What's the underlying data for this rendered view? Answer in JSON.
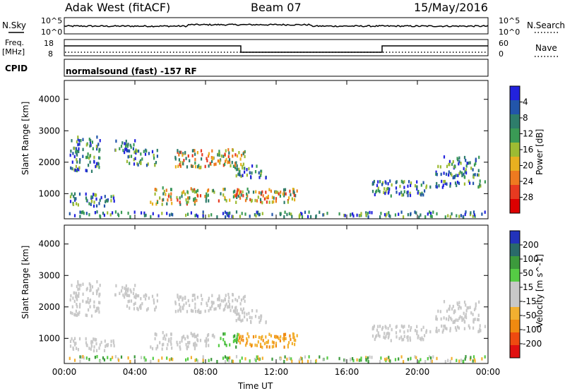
{
  "header": {
    "radar": "Adak West (fitACF)",
    "beam": "Beam 07",
    "date": "15/May/2016"
  },
  "panels": {
    "nsky": {
      "label": "N.Sky",
      "tick_top": "10^5",
      "tick_bottom": "10^0",
      "right_label": "N.Search",
      "right_tick_top": "10^5",
      "right_tick_bottom": "10^0"
    },
    "freq": {
      "label_line1": "Freq.",
      "label_line2": "[MHz]",
      "tick_top": "18",
      "tick_bottom": "8",
      "right_label": "Nave",
      "right_tick_top": "60",
      "right_tick_bottom": "0",
      "steps": [
        {
          "t": 0,
          "level": "high"
        },
        {
          "t": 10,
          "level": "low"
        },
        {
          "t": 18,
          "level": "high"
        },
        {
          "t": 24,
          "level": "high"
        }
      ]
    },
    "cpid": {
      "label": "CPID",
      "text": "normalsound (fast) -157 RF"
    }
  },
  "chart_data": [
    {
      "type": "heatmap",
      "name": "power",
      "xlabel": "",
      "ylabel": "Slant Range [km]",
      "ylim": [
        200,
        4600
      ],
      "yticks": [
        "1000",
        "2000",
        "3000",
        "4000"
      ],
      "ytick_values": [
        1000,
        2000,
        3000,
        4000
      ],
      "colorbar": {
        "label": "Power [dB]",
        "ticks": [
          "4",
          "8",
          "12",
          "16",
          "20",
          "24",
          "28"
        ],
        "colors": [
          "#2222dd",
          "#2255aa",
          "#2e7d6b",
          "#3a9a55",
          "#9dbb33",
          "#e8b020",
          "#ee7a20",
          "#e83a20",
          "#dd0000"
        ]
      }
    },
    {
      "type": "heatmap",
      "name": "velocity",
      "xlabel": "Time UT",
      "ylabel": "Slant Range [km]",
      "ylim": [
        200,
        4600
      ],
      "yticks": [
        "1000",
        "2000",
        "3000",
        "4000"
      ],
      "ytick_values": [
        1000,
        2000,
        3000,
        4000
      ],
      "xticks": [
        "00:00",
        "04:00",
        "08:00",
        "12:00",
        "16:00",
        "20:00",
        "00:00"
      ],
      "xtick_values": [
        0,
        4,
        8,
        12,
        16,
        20,
        24
      ],
      "colorbar": {
        "label": "Velocity [m s^-1]",
        "ticks": [
          "200",
          "100",
          "50",
          "15",
          "-15",
          "-50",
          "-100",
          "-200"
        ],
        "colors": [
          "#2233bb",
          "#2a6a6a",
          "#3c9a3c",
          "#55cc44",
          "#c8c8c8",
          "#c8c8c8",
          "#f2b030",
          "#f08a10",
          "#ee4a10",
          "#e01010"
        ]
      }
    }
  ]
}
